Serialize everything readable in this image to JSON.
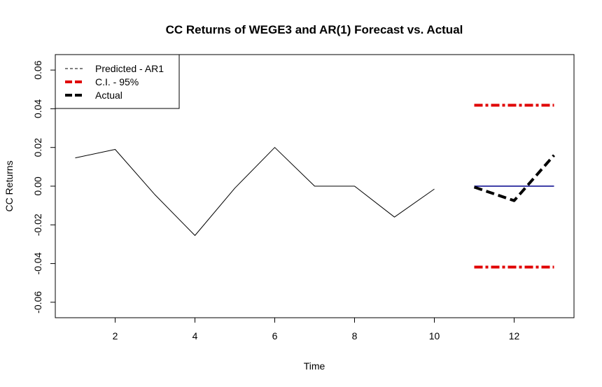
{
  "chart_data": {
    "type": "line",
    "title": "CC Returns of WEGE3 and AR(1) Forecast vs. Actual",
    "xlabel": "Time",
    "ylabel": "CC Returns",
    "xlim": [
      0.5,
      13.5
    ],
    "ylim": [
      -0.068,
      0.068
    ],
    "x_ticks": [
      2,
      4,
      6,
      8,
      10,
      12
    ],
    "y_ticks": [
      -0.06,
      -0.04,
      -0.02,
      0.0,
      0.02,
      0.04,
      0.06
    ],
    "x_tick_labels": [
      "2",
      "4",
      "6",
      "8",
      "10",
      "12"
    ],
    "y_tick_labels": [
      "-0.06",
      "-0.04",
      "-0.02",
      "0.00",
      "0.02",
      "0.04",
      "0.06"
    ],
    "grid": false,
    "legend_position": "top-left",
    "legend": [
      {
        "label": "Predicted - AR1",
        "color": "#000000",
        "style": "dashed-thin"
      },
      {
        "label": "C.I. - 95%",
        "color": "#e00000",
        "style": "dashed-thick"
      },
      {
        "label": "Actual",
        "color": "#000000",
        "style": "dashed-thick"
      }
    ],
    "series": [
      {
        "role": "history",
        "color": "#000000",
        "x": [
          1,
          2,
          3,
          4,
          5,
          6,
          7,
          8,
          9,
          10
        ],
        "values": [
          0.0146,
          0.019,
          -0.0045,
          -0.0255,
          -0.001,
          0.02,
          0.0,
          0.0,
          -0.016,
          -0.0015
        ]
      },
      {
        "role": "predicted",
        "color": "#00008b",
        "x": [
          11,
          12,
          13
        ],
        "values": [
          0.0,
          0.0,
          0.0
        ]
      },
      {
        "role": "ci-upper",
        "color": "#e00000",
        "x": [
          11,
          12,
          13
        ],
        "values": [
          0.0418,
          0.0418,
          0.0418
        ]
      },
      {
        "role": "ci-lower",
        "color": "#e00000",
        "x": [
          11,
          12,
          13
        ],
        "values": [
          -0.0418,
          -0.0418,
          -0.0418
        ]
      },
      {
        "role": "actual",
        "color": "#000000",
        "x": [
          11,
          12,
          13
        ],
        "values": [
          -0.0005,
          -0.0075,
          0.016
        ]
      }
    ]
  }
}
